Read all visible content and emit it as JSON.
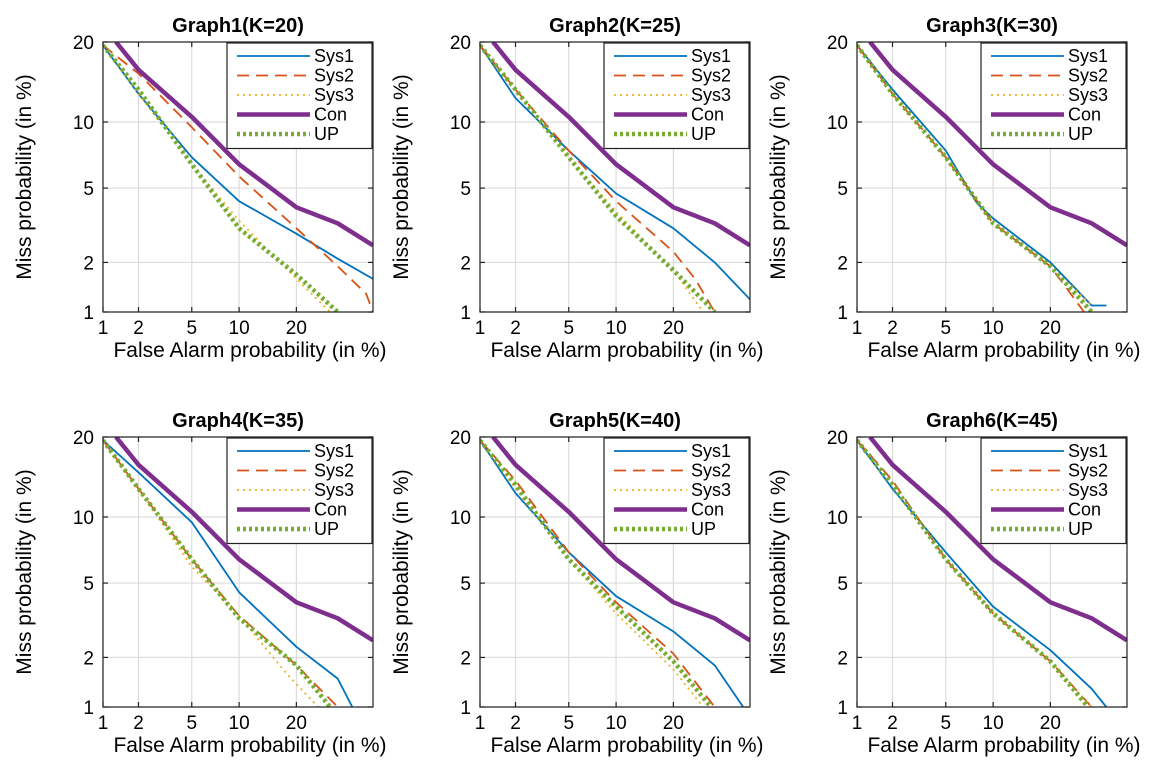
{
  "chart_data": [
    {
      "type": "line",
      "title": "Graph1(K=20)",
      "xlabel": "False Alarm probability (in %)",
      "ylabel": "Miss probability (in %)",
      "xscale": "probit",
      "yscale": "probit",
      "xlim": [
        1,
        40
      ],
      "ylim": [
        1,
        20
      ],
      "xticks": [
        1,
        2,
        5,
        10,
        20
      ],
      "yticks": [
        1,
        2,
        5,
        10,
        20
      ],
      "grid": true,
      "legend_position": "top-right",
      "series": [
        {
          "name": "Sys1",
          "color": "#0072BD",
          "dash": "solid",
          "x": [
            1,
            2,
            5,
            10,
            20,
            30,
            40
          ],
          "y": [
            19.5,
            13,
            7,
            4.3,
            2.9,
            2.1,
            1.6
          ]
        },
        {
          "name": "Sys2",
          "color": "#D95319",
          "dash": "dashed",
          "x": [
            1,
            2,
            5,
            10,
            20,
            30,
            38,
            40
          ],
          "y": [
            19.5,
            15.5,
            9.5,
            5.7,
            3.1,
            1.9,
            1.3,
            1
          ]
        },
        {
          "name": "Sys3",
          "color": "#EDB120",
          "dash": "dotted",
          "x": [
            1,
            2,
            5,
            10,
            20,
            28
          ],
          "y": [
            19.5,
            13,
            6.5,
            3.4,
            1.6,
            1
          ]
        },
        {
          "name": "Con",
          "color": "#7E2F8E",
          "dash": "solid-thick",
          "x": [
            1.3,
            2,
            5,
            10,
            20,
            30,
            40
          ],
          "y": [
            20,
            16,
            10.5,
            6.5,
            4,
            3.3,
            2.5
          ]
        },
        {
          "name": "UP",
          "color": "#77AC30",
          "dash": "dotted-thick",
          "x": [
            1,
            2,
            5,
            10,
            20,
            30
          ],
          "y": [
            19.5,
            13.5,
            6.5,
            3.1,
            1.7,
            1
          ]
        }
      ]
    },
    {
      "type": "line",
      "title": "Graph2(K=25)",
      "xlabel": "False Alarm probability (in %)",
      "ylabel": "Miss probability (in %)",
      "xscale": "probit",
      "yscale": "probit",
      "xlim": [
        1,
        40
      ],
      "ylim": [
        1,
        20
      ],
      "xticks": [
        1,
        2,
        5,
        10,
        20
      ],
      "yticks": [
        1,
        2,
        5,
        10,
        20
      ],
      "grid": true,
      "legend_position": "top-right",
      "series": [
        {
          "name": "Sys1",
          "color": "#0072BD",
          "dash": "solid",
          "x": [
            1,
            2,
            5,
            10,
            20,
            30,
            40
          ],
          "y": [
            19.5,
            12.5,
            7.5,
            4.7,
            3.1,
            2,
            1.2
          ]
        },
        {
          "name": "Sys2",
          "color": "#D95319",
          "dash": "dashed",
          "x": [
            1,
            2,
            5,
            10,
            20,
            25,
            30
          ],
          "y": [
            19.5,
            13.5,
            7.5,
            4.3,
            2.3,
            1.6,
            1
          ]
        },
        {
          "name": "Sys3",
          "color": "#EDB120",
          "dash": "dotted",
          "x": [
            1,
            2,
            5,
            10,
            20,
            27
          ],
          "y": [
            19.5,
            13.5,
            7,
            3.8,
            1.8,
            1
          ]
        },
        {
          "name": "Con",
          "color": "#7E2F8E",
          "dash": "solid-thick",
          "x": [
            1.3,
            2,
            5,
            10,
            20,
            30,
            40
          ],
          "y": [
            20,
            16,
            10.5,
            6.5,
            4,
            3.3,
            2.5
          ]
        },
        {
          "name": "UP",
          "color": "#77AC30",
          "dash": "dotted-thick",
          "x": [
            1,
            2,
            5,
            10,
            20,
            30
          ],
          "y": [
            19.5,
            13.5,
            7,
            3.6,
            1.8,
            1
          ]
        }
      ]
    },
    {
      "type": "line",
      "title": "Graph3(K=30)",
      "xlabel": "False Alarm probability (in %)",
      "ylabel": "Miss probability (in %)",
      "xscale": "probit",
      "yscale": "probit",
      "xlim": [
        1,
        40
      ],
      "ylim": [
        1,
        20
      ],
      "xticks": [
        1,
        2,
        5,
        10,
        20
      ],
      "yticks": [
        1,
        2,
        5,
        10,
        20
      ],
      "grid": true,
      "legend_position": "top-right",
      "series": [
        {
          "name": "Sys1",
          "color": "#0072BD",
          "dash": "solid",
          "x": [
            1,
            2,
            5,
            8,
            10,
            20,
            30,
            34
          ],
          "y": [
            19.5,
            13.5,
            7.5,
            4.2,
            3.5,
            2,
            1.1,
            1.1
          ]
        },
        {
          "name": "Sys2",
          "color": "#D95319",
          "dash": "dashed",
          "x": [
            1,
            2,
            5,
            10,
            20,
            28
          ],
          "y": [
            19.5,
            13,
            7,
            3.3,
            1.9,
            1
          ]
        },
        {
          "name": "Sys3",
          "color": "#EDB120",
          "dash": "dotted",
          "x": [
            1,
            2,
            5,
            10,
            20,
            30
          ],
          "y": [
            19.5,
            13,
            7,
            3.4,
            1.9,
            1.1
          ]
        },
        {
          "name": "Con",
          "color": "#7E2F8E",
          "dash": "solid-thick",
          "x": [
            1.3,
            2,
            5,
            10,
            20,
            30,
            40
          ],
          "y": [
            20,
            16,
            10.5,
            6.5,
            4,
            3.3,
            2.5
          ]
        },
        {
          "name": "UP",
          "color": "#77AC30",
          "dash": "dotted-thick",
          "x": [
            1,
            2,
            5,
            10,
            20,
            30
          ],
          "y": [
            19.5,
            13,
            7,
            3.3,
            1.9,
            1
          ]
        }
      ]
    },
    {
      "type": "line",
      "title": "Graph4(K=35)",
      "xlabel": "False Alarm probability (in %)",
      "ylabel": "Miss probability (in %)",
      "xscale": "probit",
      "yscale": "probit",
      "xlim": [
        1,
        40
      ],
      "ylim": [
        1,
        20
      ],
      "xticks": [
        1,
        2,
        5,
        10,
        20
      ],
      "yticks": [
        1,
        2,
        5,
        10,
        20
      ],
      "grid": true,
      "legend_position": "top-right",
      "series": [
        {
          "name": "Sys1",
          "color": "#0072BD",
          "dash": "solid",
          "x": [
            1,
            2,
            5,
            10,
            20,
            30,
            34
          ],
          "y": [
            19.5,
            15,
            9.5,
            4.5,
            2.3,
            1.5,
            1
          ]
        },
        {
          "name": "Sys2",
          "color": "#D95319",
          "dash": "dashed",
          "x": [
            1,
            2,
            5,
            10,
            20,
            30
          ],
          "y": [
            19.5,
            13,
            6.5,
            3.4,
            1.8,
            1
          ]
        },
        {
          "name": "Sys3",
          "color": "#EDB120",
          "dash": "dotted",
          "x": [
            1,
            2,
            5,
            10,
            18,
            25
          ],
          "y": [
            19.5,
            13,
            6,
            3.4,
            1.6,
            1
          ]
        },
        {
          "name": "Con",
          "color": "#7E2F8E",
          "dash": "solid-thick",
          "x": [
            1.3,
            2,
            5,
            10,
            20,
            30,
            40
          ],
          "y": [
            20,
            16,
            10.5,
            6.5,
            4,
            3.3,
            2.5
          ]
        },
        {
          "name": "UP",
          "color": "#77AC30",
          "dash": "dotted-thick",
          "x": [
            1,
            2,
            5,
            10,
            20,
            28
          ],
          "y": [
            19.5,
            13,
            6.5,
            3.3,
            1.8,
            1
          ]
        }
      ]
    },
    {
      "type": "line",
      "title": "Graph5(K=40)",
      "xlabel": "False Alarm probability (in %)",
      "ylabel": "Miss probability (in %)",
      "xscale": "probit",
      "yscale": "probit",
      "xlim": [
        1,
        40
      ],
      "ylim": [
        1,
        20
      ],
      "xticks": [
        1,
        2,
        5,
        10,
        20
      ],
      "yticks": [
        1,
        2,
        5,
        10,
        20
      ],
      "grid": true,
      "legend_position": "top-right",
      "series": [
        {
          "name": "Sys1",
          "color": "#0072BD",
          "dash": "solid",
          "x": [
            1,
            2,
            5,
            10,
            20,
            30,
            38
          ],
          "y": [
            19.5,
            12.5,
            7,
            4.3,
            2.8,
            1.8,
            1
          ]
        },
        {
          "name": "Sys2",
          "color": "#D95319",
          "dash": "dashed",
          "x": [
            1,
            2,
            5,
            10,
            20,
            30
          ],
          "y": [
            19.5,
            14,
            7,
            4,
            2.1,
            1
          ]
        },
        {
          "name": "Sys3",
          "color": "#EDB120",
          "dash": "dotted",
          "x": [
            1,
            2,
            5,
            10,
            20,
            27
          ],
          "y": [
            19.5,
            13,
            6.5,
            3.5,
            1.7,
            1
          ]
        },
        {
          "name": "Con",
          "color": "#7E2F8E",
          "dash": "solid-thick",
          "x": [
            1.3,
            2,
            5,
            10,
            20,
            30,
            40
          ],
          "y": [
            20,
            16,
            10.5,
            6.5,
            4,
            3.3,
            2.5
          ]
        },
        {
          "name": "UP",
          "color": "#77AC30",
          "dash": "dotted-thick",
          "x": [
            1,
            2,
            5,
            10,
            20,
            29
          ],
          "y": [
            19.5,
            13.5,
            6.5,
            3.8,
            1.9,
            1
          ]
        }
      ]
    },
    {
      "type": "line",
      "title": "Graph6(K=45)",
      "xlabel": "False Alarm probability (in %)",
      "ylabel": "Miss probability (in %)",
      "xscale": "probit",
      "yscale": "probit",
      "xlim": [
        1,
        40
      ],
      "ylim": [
        1,
        20
      ],
      "xticks": [
        1,
        2,
        5,
        10,
        20
      ],
      "yticks": [
        1,
        2,
        5,
        10,
        20
      ],
      "grid": true,
      "legend_position": "top-right",
      "series": [
        {
          "name": "Sys1",
          "color": "#0072BD",
          "dash": "solid",
          "x": [
            1,
            2,
            5,
            10,
            20,
            30,
            34
          ],
          "y": [
            19.5,
            13,
            7,
            3.8,
            2.2,
            1.3,
            1
          ]
        },
        {
          "name": "Sys2",
          "color": "#D95319",
          "dash": "dashed",
          "x": [
            1,
            2,
            5,
            10,
            20,
            30
          ],
          "y": [
            19.5,
            14,
            6.5,
            3.5,
            1.9,
            1
          ]
        },
        {
          "name": "Sys3",
          "color": "#EDB120",
          "dash": "dotted",
          "x": [
            1,
            2,
            5,
            10,
            20,
            30
          ],
          "y": [
            19.5,
            13.5,
            6.5,
            3.6,
            1.9,
            1
          ]
        },
        {
          "name": "Con",
          "color": "#7E2F8E",
          "dash": "solid-thick",
          "x": [
            1.3,
            2,
            5,
            10,
            20,
            30,
            40
          ],
          "y": [
            20,
            16,
            10.5,
            6.5,
            4,
            3.3,
            2.5
          ]
        },
        {
          "name": "UP",
          "color": "#77AC30",
          "dash": "dotted-thick",
          "x": [
            1,
            2,
            5,
            10,
            20,
            29
          ],
          "y": [
            19.5,
            13.5,
            6.5,
            3.5,
            1.9,
            1
          ]
        }
      ]
    }
  ]
}
